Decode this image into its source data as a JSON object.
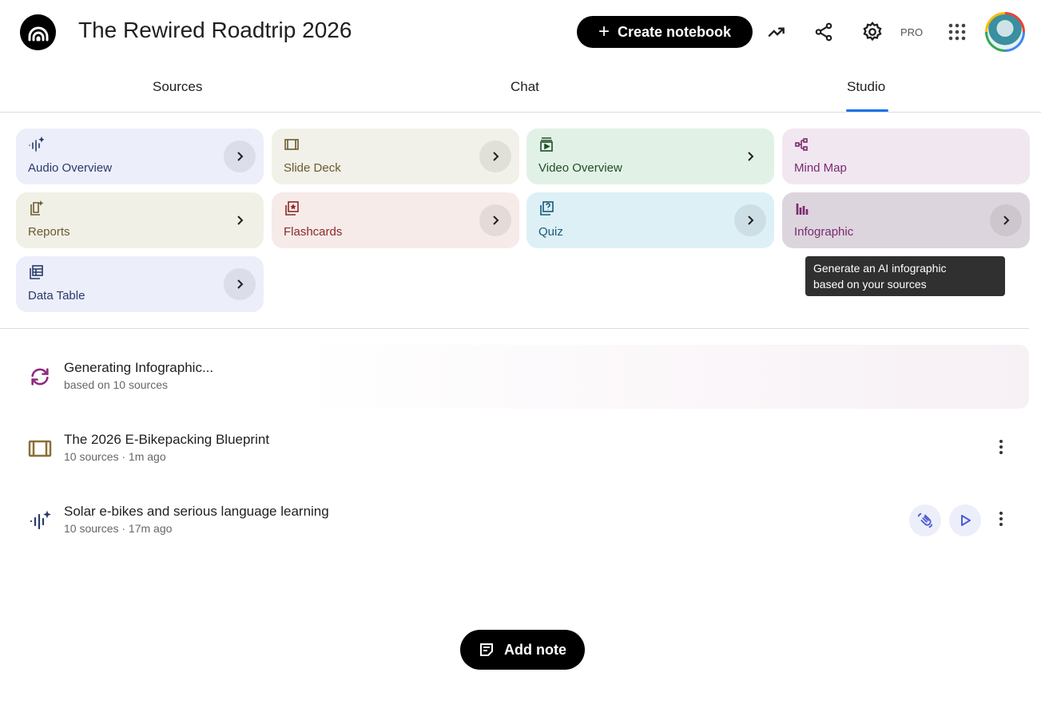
{
  "header": {
    "title": "The Rewired Roadtrip 2026",
    "create_label": "Create notebook",
    "pro_label": "PRO"
  },
  "tabs": [
    {
      "label": "Sources"
    },
    {
      "label": "Chat"
    },
    {
      "label": "Studio",
      "active": true
    }
  ],
  "studio_tiles": [
    {
      "label": "Audio Overview",
      "icon": "audio-sparkle-icon",
      "bg": "#eceffa",
      "fg": "#2b3a6b"
    },
    {
      "label": "Slide Deck",
      "icon": "slides-icon",
      "bg": "#f1f1e9",
      "fg": "#6b5a30"
    },
    {
      "label": "Video Overview",
      "icon": "video-icon",
      "bg": "#e2f1e6",
      "fg": "#1e4d2b"
    },
    {
      "label": "Mind Map",
      "icon": "mind-map-icon",
      "bg": "#f1e7f0",
      "fg": "#7a2a6f"
    },
    {
      "label": "Reports",
      "icon": "reports-icon",
      "bg": "#f1f0e7",
      "fg": "#6b5a30"
    },
    {
      "label": "Flashcards",
      "icon": "flashcards-icon",
      "bg": "#f6ebe9",
      "fg": "#8a2a2a"
    },
    {
      "label": "Quiz",
      "icon": "quiz-icon",
      "bg": "#ddf0f6",
      "fg": "#1a5a7a"
    },
    {
      "label": "Infographic",
      "icon": "infographic-icon",
      "bg": "#ddd5dd",
      "fg": "#7a2a6f"
    },
    {
      "label": "Data Table",
      "icon": "table-icon",
      "bg": "#eceffa",
      "fg": "#2b3a6b"
    }
  ],
  "tooltip": {
    "line1": "Generate an AI infographic",
    "line2": "based on your sources"
  },
  "outputs": [
    {
      "title": "Generating Infographic...",
      "subtitle": "based on 10 sources",
      "icon": "sync-icon"
    },
    {
      "title": "The 2026 E-Bikepacking Blueprint",
      "subtitle": "10 sources · 1m ago",
      "icon": "slides-icon"
    },
    {
      "title": "Solar e-bikes and serious language learning",
      "subtitle": "10 sources · 17m ago",
      "icon": "audio-sparkle-icon"
    }
  ],
  "add_note_label": "Add note",
  "colors": {
    "accent": "#1a73e8",
    "audio_action": "#4f5bd5"
  }
}
